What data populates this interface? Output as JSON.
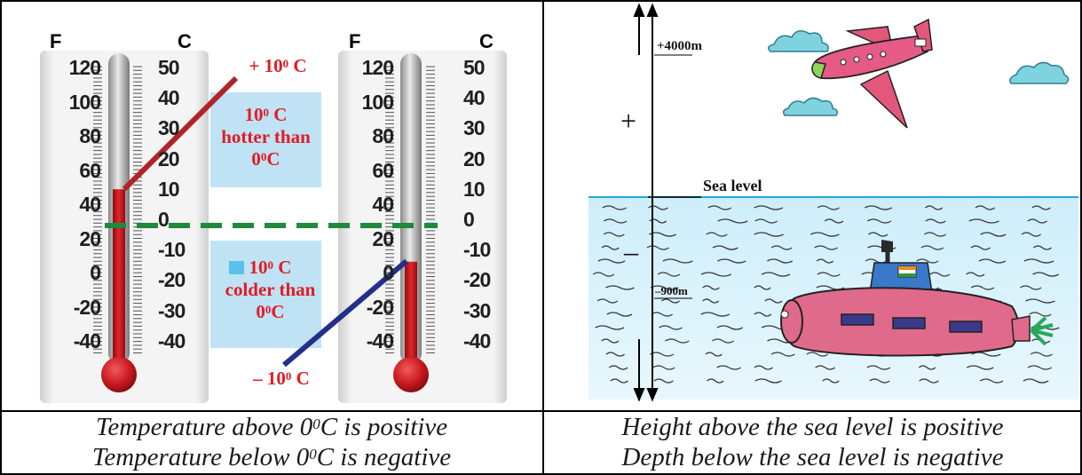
{
  "thermometers": {
    "fahrenheit_unit": "F",
    "celsius_unit": "C",
    "fahrenheit_ticks": [
      "120",
      "100",
      "80",
      "60",
      "40",
      "20",
      "0",
      "-20",
      "-40"
    ],
    "celsius_ticks": [
      "50",
      "40",
      "30",
      "20",
      "10",
      "0",
      "-10",
      "-20",
      "-30",
      "-40"
    ],
    "left_reading_celsius": 10,
    "right_reading_celsius": -10
  },
  "labels": {
    "plus_ten": {
      "prefix": "+ 10",
      "sup": "0",
      "suffix": " C"
    },
    "minus_ten": {
      "prefix": "– 10",
      "sup": "0",
      "suffix": " C"
    },
    "hotter": {
      "line1_prefix": "10",
      "line1_sup": "0",
      "line1_suffix": " C",
      "line2": "hotter than",
      "line3_prefix": "0",
      "line3_sup": "0",
      "line3_suffix": "C"
    },
    "colder": {
      "line1_prefix": "10",
      "line1_sup": "0",
      "line1_suffix": " C",
      "line2": "colder than",
      "line3_prefix": "0",
      "line3_sup": "0",
      "line3_suffix": "C"
    }
  },
  "sea": {
    "height_label": "+4000m",
    "depth_label": "–900m",
    "sea_level_label": "Sea level",
    "plus_sign": "+",
    "minus_sign": "–"
  },
  "captions": {
    "left_line1_a": "Temperature above 0",
    "left_line1_sup": "0",
    "left_line1_b": "C is positive",
    "left_line2_a": "Temperature below 0",
    "left_line2_sup": "0",
    "left_line2_b": "C is negative",
    "right_line1": "Height above the sea level is positive",
    "right_line2": "Depth below the sea level is negative"
  },
  "colors": {
    "mercury": "#c8191f",
    "dashed_zero_line": "#1f8a3a",
    "hot_pointer": "#b0232a",
    "cold_pointer": "#23308a",
    "label_box": "#bfe3f5",
    "sea_line": "#2aa7d8",
    "water": "#dff3fb"
  }
}
